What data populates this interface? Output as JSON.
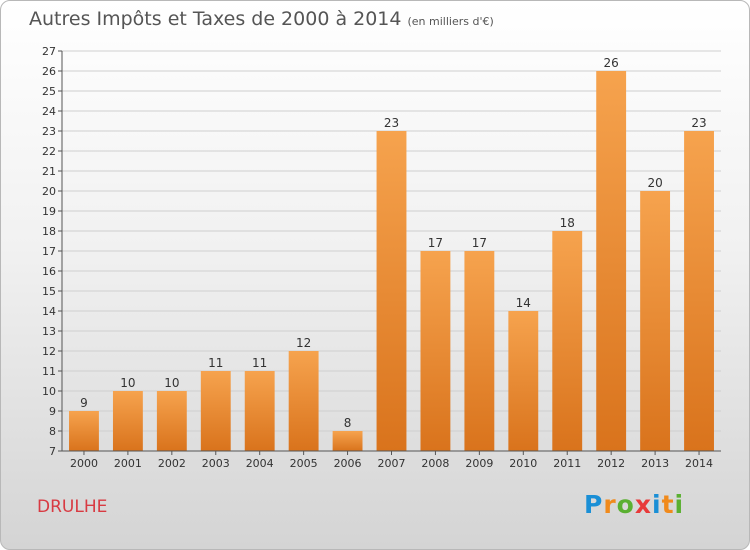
{
  "title": {
    "main": "Autres Impôts et Taxes de 2000 à 2014",
    "unit": "(en milliers d'€)"
  },
  "commune": "DRULHE",
  "logo": {
    "text": "Proxiti",
    "letters": [
      "P",
      "r",
      "o",
      "x",
      "i",
      "t",
      "i"
    ],
    "colors": [
      "#1a8fd6",
      "#f08a1c",
      "#5ab031",
      "#e83a3a",
      "#1a8fd6",
      "#f08a1c",
      "#5ab031"
    ]
  },
  "colors": {
    "bar_light": "#f6a34e",
    "bar_dark": "#d9731c",
    "grid": "#cfcfcf",
    "axis": "#555555",
    "commune": "#d83a42"
  },
  "chart_data": {
    "type": "bar",
    "categories": [
      "2000",
      "2001",
      "2002",
      "2003",
      "2004",
      "2005",
      "2006",
      "2007",
      "2008",
      "2009",
      "2010",
      "2011",
      "2012",
      "2013",
      "2014"
    ],
    "values": [
      9,
      10,
      10,
      11,
      11,
      12,
      8,
      23,
      17,
      17,
      14,
      18,
      26,
      20,
      23
    ],
    "title": "Autres Impôts et Taxes de 2000 à 2014",
    "xlabel": "",
    "ylabel": "",
    "ylim": [
      7,
      27
    ],
    "yticks": [
      7,
      8,
      9,
      10,
      11,
      12,
      13,
      14,
      15,
      16,
      17,
      18,
      19,
      20,
      21,
      22,
      23,
      24,
      25,
      26,
      27
    ],
    "grid": true,
    "data_labels": true
  }
}
